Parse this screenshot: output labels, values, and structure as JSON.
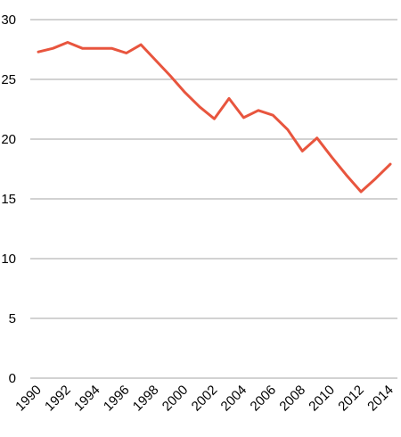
{
  "chart_data": {
    "type": "line",
    "title": "",
    "xlabel": "",
    "ylabel": "",
    "x": [
      1990,
      1991,
      1992,
      1993,
      1994,
      1995,
      1996,
      1997,
      1998,
      1999,
      2000,
      2001,
      2002,
      2003,
      2004,
      2005,
      2006,
      2007,
      2008,
      2009,
      2010,
      2011,
      2012,
      2013,
      2014
    ],
    "series": [
      {
        "values": [
          27.3,
          27.6,
          28.1,
          27.6,
          27.6,
          27.6,
          27.2,
          27.9,
          26.6,
          25.3,
          23.9,
          22.7,
          21.7,
          23.4,
          21.8,
          22.4,
          22.0,
          20.8,
          19.0,
          20.1,
          18.5,
          17.0,
          15.6,
          16.7,
          17.9
        ],
        "color": "#e8553e"
      }
    ],
    "ylim": [
      0,
      30
    ],
    "yticks": [
      0,
      5,
      10,
      15,
      20,
      25,
      30
    ],
    "xticks": [
      "1990",
      "1992",
      "1994",
      "1996",
      "1998",
      "2000",
      "2002",
      "2004",
      "2006",
      "2008",
      "2010",
      "2012",
      "2014"
    ],
    "grid": "horizontal",
    "legend": "none"
  }
}
